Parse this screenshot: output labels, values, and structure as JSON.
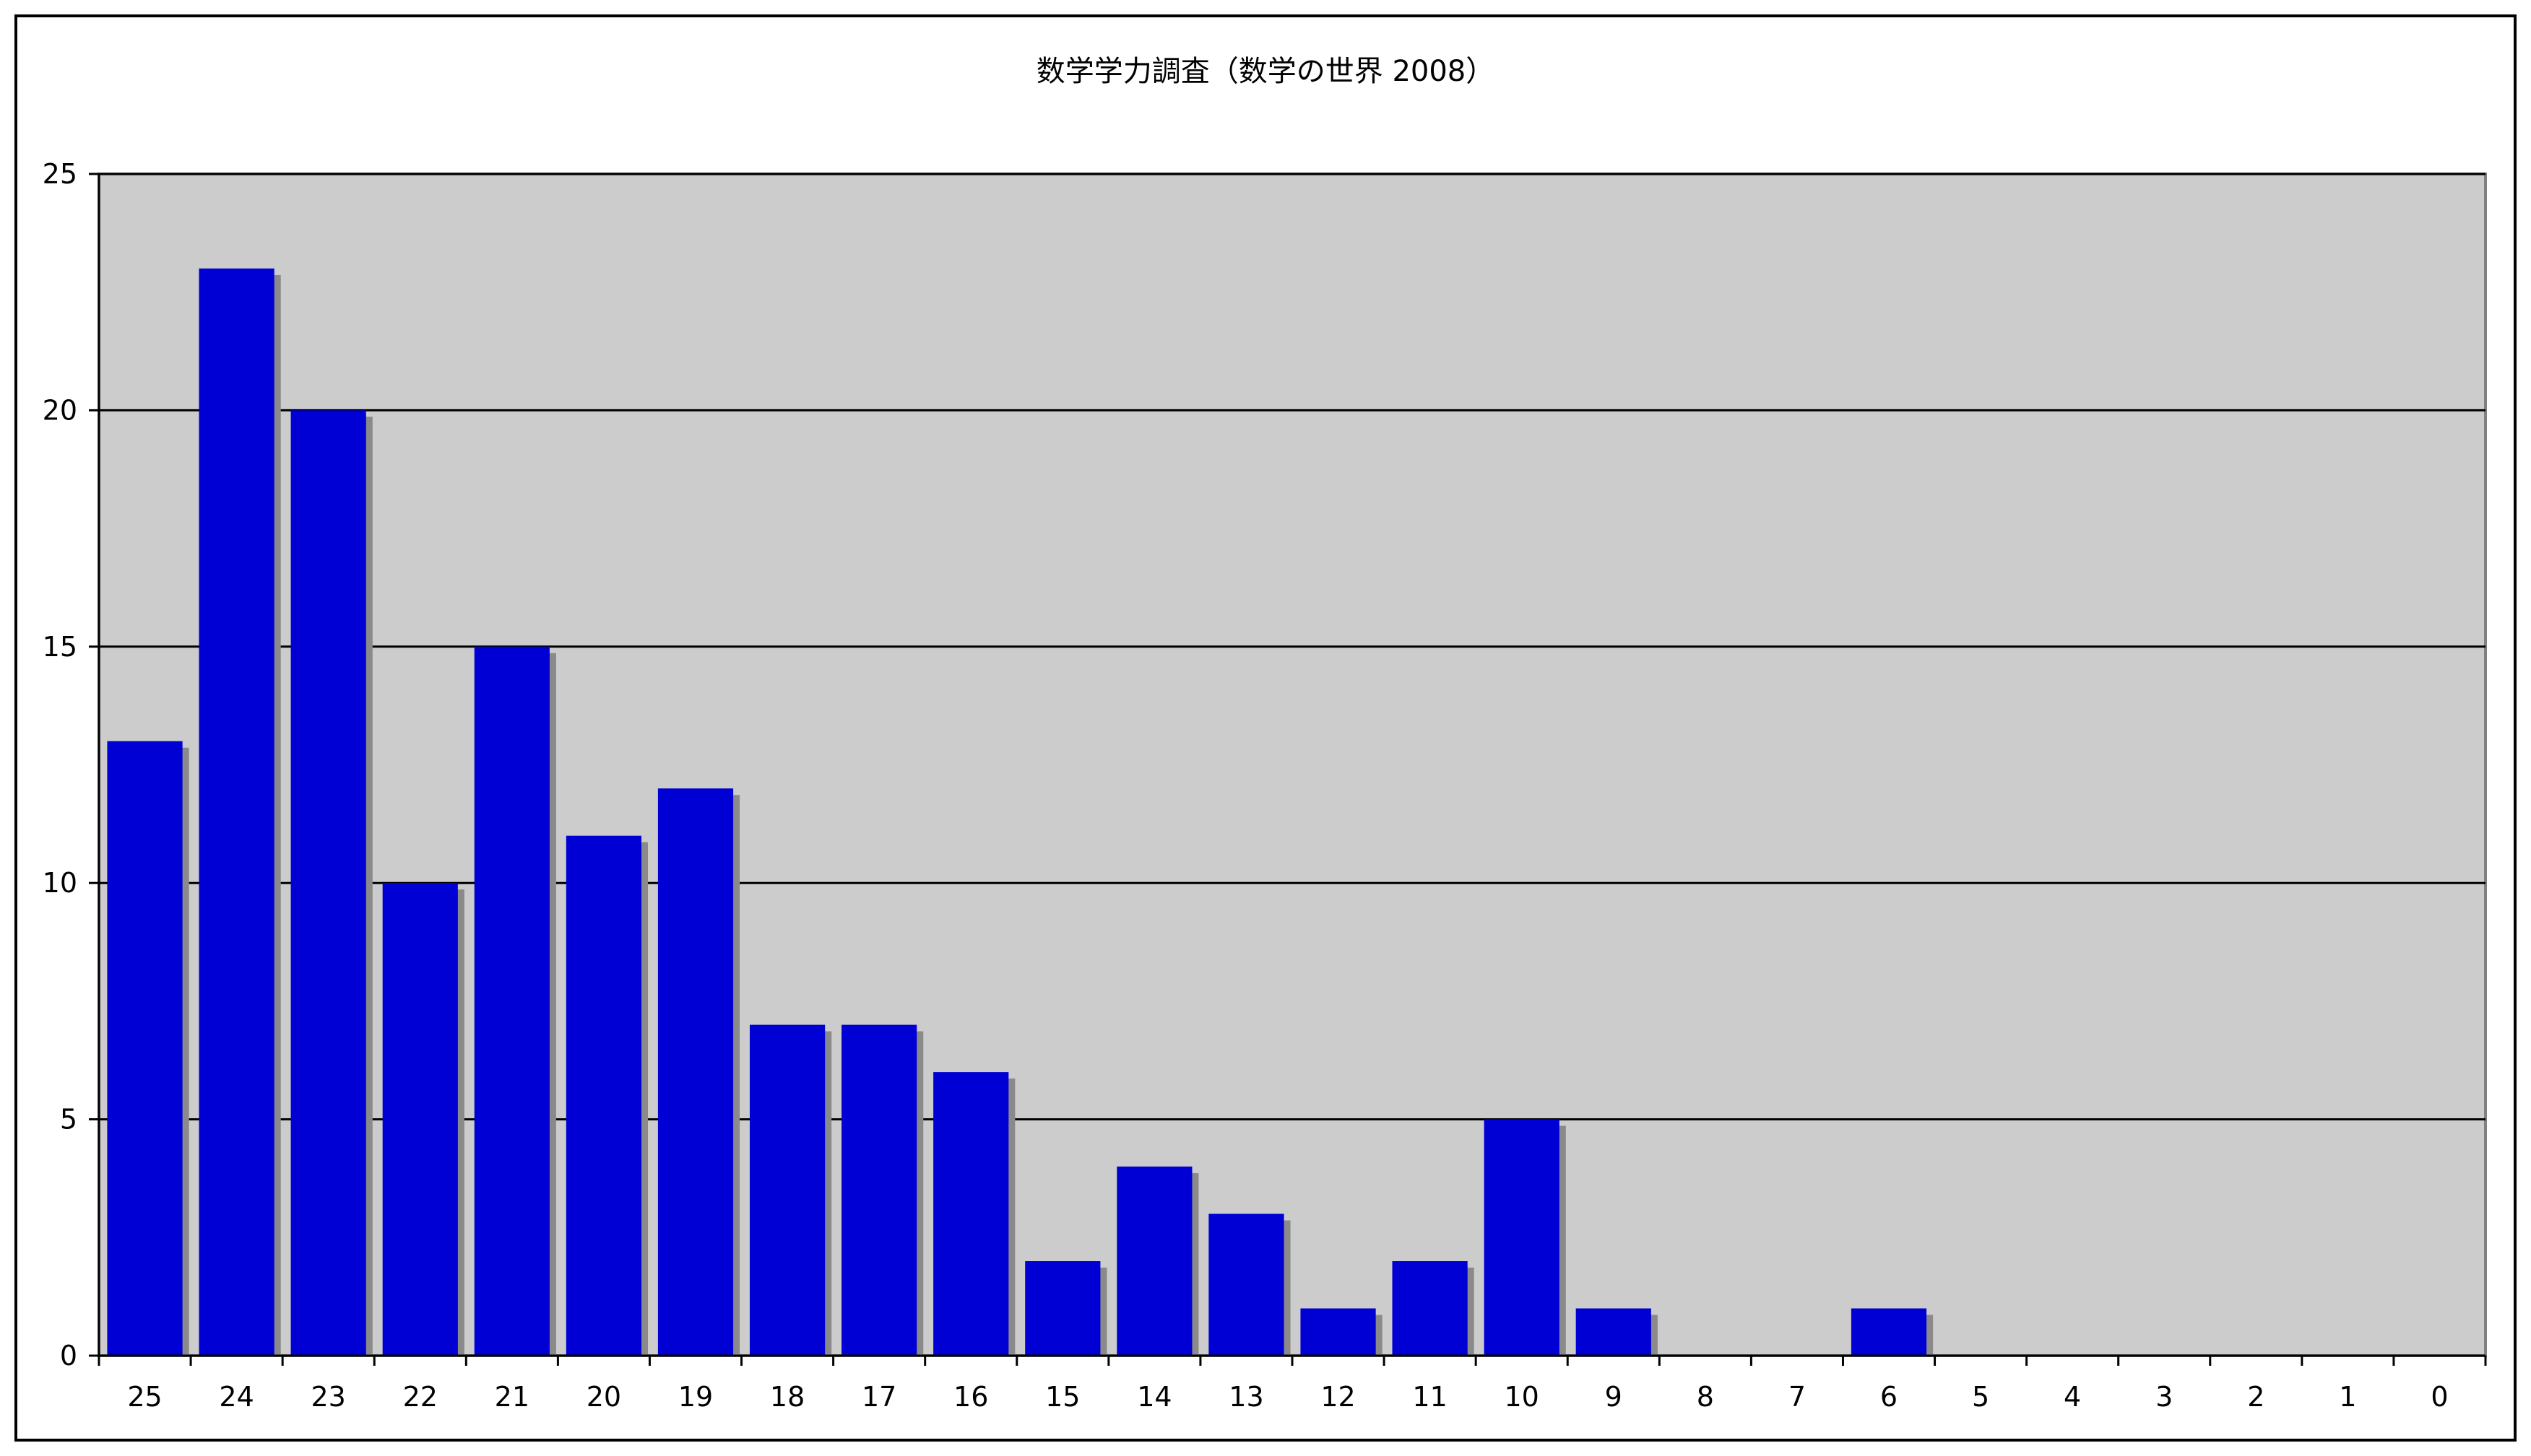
{
  "chart_data": {
    "type": "bar",
    "title": "数学学力調査（数学の世界 2008）",
    "xlabel": "",
    "ylabel": "",
    "categories": [
      "25",
      "24",
      "23",
      "22",
      "21",
      "20",
      "19",
      "18",
      "17",
      "16",
      "15",
      "14",
      "13",
      "12",
      "11",
      "10",
      "9",
      "8",
      "7",
      "6",
      "5",
      "4",
      "3",
      "2",
      "1",
      "0"
    ],
    "values": [
      13,
      23,
      20,
      10,
      15,
      11,
      12,
      7,
      7,
      6,
      2,
      4,
      3,
      1,
      2,
      5,
      1,
      0,
      0,
      1,
      0,
      0,
      0,
      0,
      0,
      0
    ],
    "ylim": [
      0,
      25
    ],
    "yticks": [
      "0",
      "5",
      "10",
      "15",
      "20",
      "25"
    ],
    "grid": true,
    "legend": "none"
  },
  "colors": {
    "bar": "#0000d4",
    "bar_shadow": "#8a8a8a",
    "plot_background": "#cccccc",
    "gridline": "#000000"
  }
}
